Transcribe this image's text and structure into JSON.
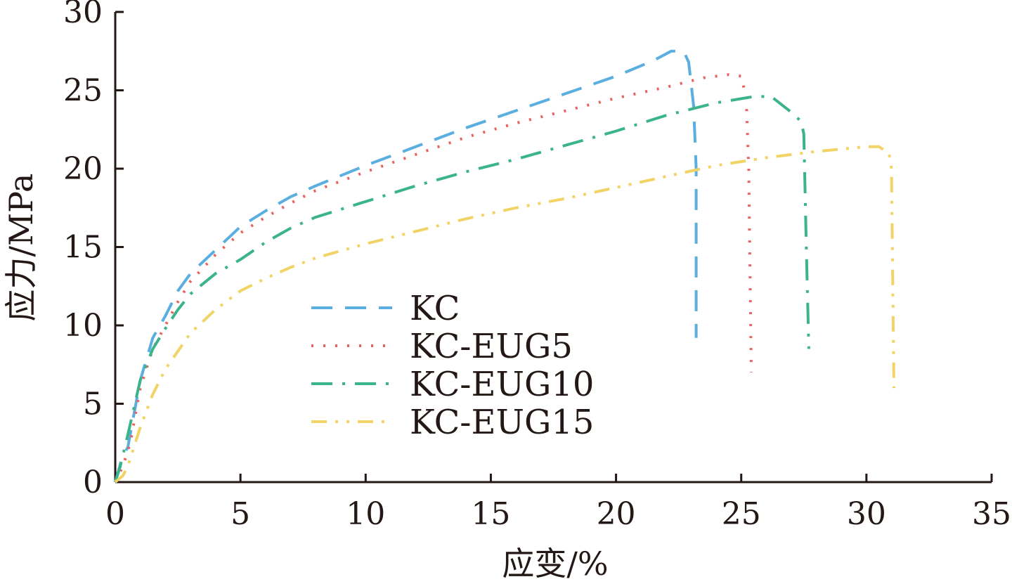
{
  "chart_data": {
    "type": "line",
    "xlabel": "应变/%",
    "ylabel": "应力/MPa",
    "xlim": [
      0,
      35
    ],
    "ylim": [
      0,
      30
    ],
    "xticks": [
      0,
      5,
      10,
      15,
      20,
      25,
      30,
      35
    ],
    "yticks": [
      0,
      5,
      10,
      15,
      20,
      25,
      30
    ],
    "legend_position": "center-left",
    "grid": false,
    "series": [
      {
        "name": "KC",
        "color": "#5aaee0",
        "dash": "long-dash",
        "points": [
          [
            0,
            0
          ],
          [
            0.3,
            1.7
          ],
          [
            0.5,
            2.2
          ],
          [
            1,
            6.5
          ],
          [
            1.5,
            9.2
          ],
          [
            2,
            10.6
          ],
          [
            2.5,
            12.2
          ],
          [
            3,
            13.3
          ],
          [
            4,
            14.8
          ],
          [
            5,
            16.3
          ],
          [
            6,
            17.3
          ],
          [
            7,
            18.2
          ],
          [
            8,
            18.9
          ],
          [
            10,
            20.2
          ],
          [
            12,
            21.4
          ],
          [
            14,
            22.6
          ],
          [
            16,
            23.7
          ],
          [
            18,
            24.8
          ],
          [
            20,
            25.9
          ],
          [
            21.5,
            26.9
          ],
          [
            22.2,
            27.5
          ],
          [
            22.7,
            27.5
          ],
          [
            22.9,
            26.8
          ],
          [
            23.1,
            24.0
          ],
          [
            23.2,
            20.0
          ],
          [
            23.2,
            9.2
          ]
        ]
      },
      {
        "name": "KC-EUG5",
        "color": "#e8635e",
        "dash": "dot",
        "points": [
          [
            0,
            0
          ],
          [
            0.3,
            1.0
          ],
          [
            0.6,
            2.5
          ],
          [
            1,
            6.0
          ],
          [
            1.5,
            8.5
          ],
          [
            2,
            10.0
          ],
          [
            2.5,
            11.5
          ],
          [
            3,
            12.8
          ],
          [
            4,
            14.5
          ],
          [
            5,
            15.9
          ],
          [
            6,
            16.9
          ],
          [
            7,
            17.8
          ],
          [
            8,
            18.6
          ],
          [
            10,
            19.8
          ],
          [
            12,
            20.9
          ],
          [
            14,
            22.0
          ],
          [
            16,
            22.9
          ],
          [
            18,
            23.7
          ],
          [
            20,
            24.5
          ],
          [
            22,
            25.2
          ],
          [
            23.5,
            25.8
          ],
          [
            24.5,
            26.0
          ],
          [
            25,
            25.9
          ],
          [
            25.2,
            24.5
          ],
          [
            25.3,
            20.0
          ],
          [
            25.4,
            7.0
          ]
        ]
      },
      {
        "name": "KC-EUG10",
        "color": "#3cb48a",
        "dash": "dash-dot",
        "points": [
          [
            0,
            0
          ],
          [
            0.2,
            1.0
          ],
          [
            0.5,
            3.0
          ],
          [
            1,
            6.5
          ],
          [
            1.5,
            8.5
          ],
          [
            2,
            9.8
          ],
          [
            2.5,
            11.0
          ],
          [
            3,
            12.0
          ],
          [
            4,
            13.3
          ],
          [
            5,
            14.2
          ],
          [
            6,
            15.3
          ],
          [
            7,
            16.2
          ],
          [
            8,
            16.9
          ],
          [
            10,
            17.9
          ],
          [
            12,
            18.9
          ],
          [
            14,
            19.8
          ],
          [
            16,
            20.6
          ],
          [
            18,
            21.5
          ],
          [
            20,
            22.4
          ],
          [
            22,
            23.4
          ],
          [
            24,
            24.2
          ],
          [
            25.5,
            24.6
          ],
          [
            26.2,
            24.6
          ],
          [
            27,
            23.6
          ],
          [
            27.4,
            23.0
          ],
          [
            27.5,
            22.2
          ],
          [
            27.6,
            15.0
          ],
          [
            27.7,
            8.5
          ]
        ]
      },
      {
        "name": "KC-EUG15",
        "color": "#f2d366",
        "dash": "dash-dot-dot",
        "points": [
          [
            0,
            0
          ],
          [
            0.3,
            0.4
          ],
          [
            0.5,
            1.0
          ],
          [
            1,
            3.5
          ],
          [
            1.5,
            5.6
          ],
          [
            2,
            7.2
          ],
          [
            3,
            9.5
          ],
          [
            4,
            11.0
          ],
          [
            5,
            12.2
          ],
          [
            6,
            13.0
          ],
          [
            7,
            13.7
          ],
          [
            8,
            14.3
          ],
          [
            10,
            15.2
          ],
          [
            12,
            16.0
          ],
          [
            14,
            16.8
          ],
          [
            16,
            17.5
          ],
          [
            18,
            18.1
          ],
          [
            20,
            18.8
          ],
          [
            22,
            19.5
          ],
          [
            24,
            20.2
          ],
          [
            26,
            20.7
          ],
          [
            28,
            21.1
          ],
          [
            30,
            21.4
          ],
          [
            30.5,
            21.4
          ],
          [
            30.9,
            21.0
          ],
          [
            31.0,
            20.0
          ],
          [
            31.1,
            6.0
          ]
        ]
      }
    ]
  }
}
